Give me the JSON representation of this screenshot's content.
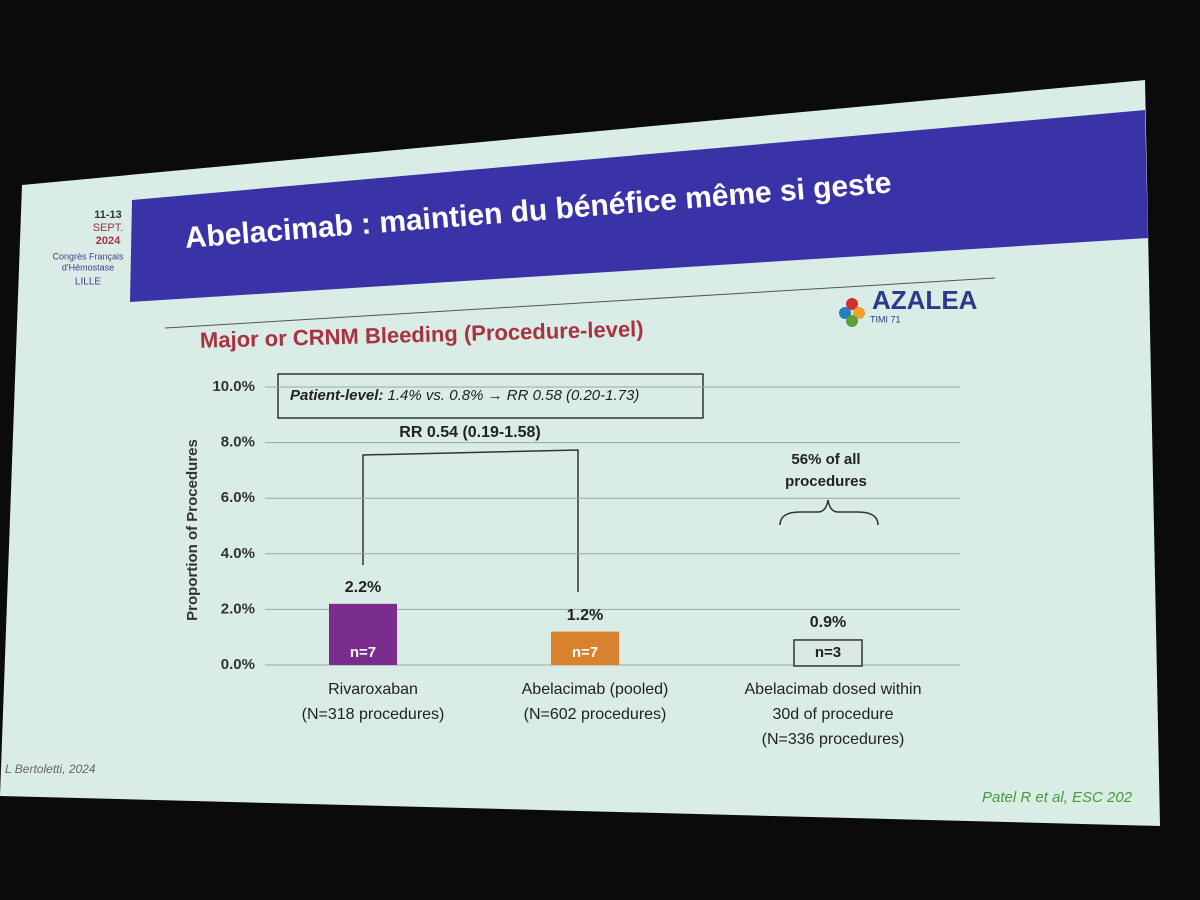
{
  "slide": {
    "title": "Abelacimab : maintien du bénéfice même si geste",
    "conference": {
      "dates": "11-13",
      "month": "SEPT.",
      "year": "2024",
      "name_line1": "Congrès Français",
      "name_line2": "d'Hémostase",
      "city": "LILLE"
    },
    "logo": {
      "name": "AZALEA",
      "sub": "TIMI 71"
    },
    "footer_left": "L Bertoletti, 2024",
    "footer_right": "Patel R et al, ESC 202"
  },
  "chart_data": {
    "type": "bar",
    "title": "Major or CRNM Bleeding (Procedure-level)",
    "y_label": "Proportion of Procedures",
    "categories": [
      [
        "Rivaroxaban",
        "(N=318 procedures)"
      ],
      [
        "Abelacimab (pooled)",
        "(N=602 procedures)"
      ],
      [
        "Abelacimab dosed within",
        "30d of procedure",
        "(N=336 procedures)"
      ]
    ],
    "values": [
      2.2,
      1.2,
      0.9
    ],
    "value_labels": [
      "2.2%",
      "1.2%",
      "0.9%"
    ],
    "bar_labels": [
      "n=7",
      "n=7",
      "n=3"
    ],
    "colors": [
      "#7b2d8e",
      "#d8822e",
      "#dbe9e3"
    ],
    "ylim": [
      0,
      10
    ],
    "yticks": [
      {
        "value": 0,
        "label": "0.0%"
      },
      {
        "value": 2,
        "label": "2.0%"
      },
      {
        "value": 4,
        "label": "4.0%"
      },
      {
        "value": 6,
        "label": "6.0%"
      },
      {
        "value": 8,
        "label": "8.0%"
      },
      {
        "value": 10,
        "label": "10.0%"
      }
    ],
    "grid": true,
    "annotations": {
      "patient_level_prefix": "Patient-level:",
      "patient_level_text": "1.4% vs. 0.8% → RR 0.58 (0.20-1.73)",
      "comparison": "RR 0.54 (0.19-1.58)",
      "share_line1": "56% of all",
      "share_line2": "procedures"
    }
  }
}
